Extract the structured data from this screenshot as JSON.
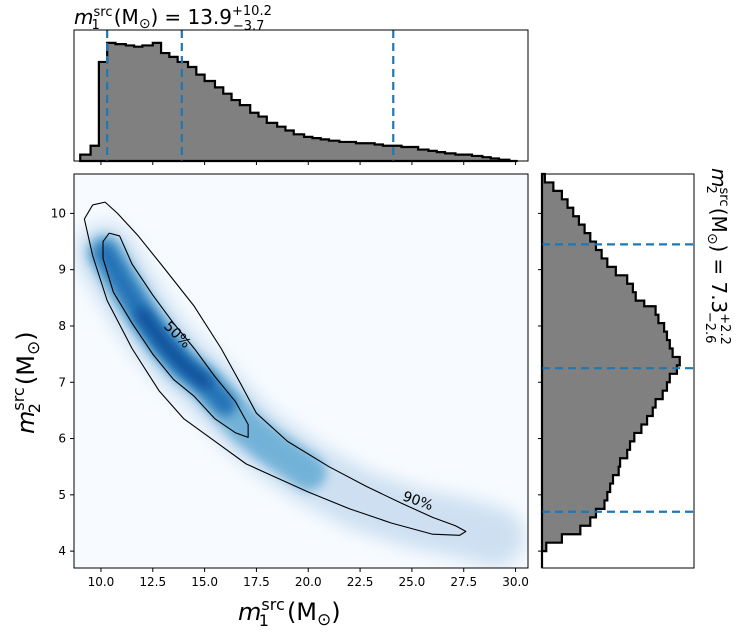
{
  "chart_data": [
    {
      "type": "histogram",
      "panel": "m1 marginal",
      "title": {
        "var": "m",
        "sup": "src",
        "sub": "1",
        "unit": "(M",
        "sun": "⊙",
        "close": ")",
        "value": "= 13.9",
        "plus": "+10.2",
        "minus": "−3.7"
      },
      "bin_edges": [
        9.0,
        9.5,
        9.9,
        10.3,
        10.7,
        11.2,
        11.6,
        12.0,
        12.5,
        12.9,
        13.3,
        13.7,
        14.2,
        14.6,
        15.0,
        15.5,
        15.9,
        16.3,
        16.7,
        17.2,
        17.6,
        18.0,
        18.5,
        18.9,
        19.3,
        19.8,
        20.2,
        20.6,
        21.0,
        21.5,
        21.9,
        22.3,
        22.8,
        23.2,
        23.6,
        24.1,
        24.5,
        24.9,
        25.3,
        25.8,
        26.2,
        26.6,
        27.1,
        27.5,
        27.9,
        28.4,
        28.8,
        29.2,
        29.7,
        30.1
      ],
      "counts": [
        0.05,
        0.12,
        0.78,
        0.93,
        0.92,
        0.91,
        0.9,
        0.91,
        0.93,
        0.85,
        0.82,
        0.78,
        0.74,
        0.68,
        0.63,
        0.58,
        0.53,
        0.48,
        0.44,
        0.38,
        0.35,
        0.3,
        0.27,
        0.24,
        0.21,
        0.19,
        0.18,
        0.17,
        0.16,
        0.15,
        0.15,
        0.14,
        0.14,
        0.13,
        0.12,
        0.12,
        0.11,
        0.11,
        0.09,
        0.08,
        0.07,
        0.06,
        0.05,
        0.05,
        0.04,
        0.03,
        0.02,
        0.01,
        0.0
      ],
      "quantile_lines": [
        10.3,
        13.9,
        24.1
      ],
      "xlim": [
        8.7,
        30.6
      ],
      "ylim": [
        0,
        1.0
      ]
    },
    {
      "type": "heatmap",
      "panel": "joint density",
      "xlabel": {
        "var": "m",
        "sup": "src",
        "sub": "1",
        "unit": "(M",
        "sun": "⊙",
        "close": ")"
      },
      "ylabel": {
        "var": "m",
        "sup": "src",
        "sub": "2",
        "unit": "(M",
        "sun": "⊙",
        "close": ")"
      },
      "xlim": [
        8.7,
        30.6
      ],
      "ylim": [
        3.7,
        10.7
      ],
      "x_ticks": [
        "10.0",
        "12.5",
        "15.0",
        "17.5",
        "20.0",
        "22.5",
        "25.0",
        "27.5",
        "30.0"
      ],
      "y_ticks": [
        "4",
        "5",
        "6",
        "7",
        "8",
        "9",
        "10"
      ],
      "density_ridge": [
        [
          10.2,
          9.3
        ],
        [
          11.0,
          8.8
        ],
        [
          12.0,
          8.2
        ],
        [
          13.0,
          7.7
        ],
        [
          14.0,
          7.3
        ],
        [
          15.0,
          7.0
        ],
        [
          16.0,
          6.6
        ],
        [
          17.0,
          6.2
        ],
        [
          18.0,
          5.9
        ],
        [
          20.0,
          5.4
        ],
        [
          22.5,
          4.9
        ],
        [
          25.0,
          4.6
        ],
        [
          27.5,
          4.4
        ],
        [
          29.0,
          4.25
        ]
      ],
      "contours": [
        {
          "label": "50%",
          "label_at": [
            13.7,
            7.85
          ],
          "path": [
            [
              10.4,
              9.65
            ],
            [
              10.9,
              9.6
            ],
            [
              11.5,
              9.1
            ],
            [
              12.5,
              8.55
            ],
            [
              13.5,
              8.05
            ],
            [
              14.5,
              7.6
            ],
            [
              15.5,
              7.1
            ],
            [
              16.5,
              6.65
            ],
            [
              17.1,
              6.25
            ],
            [
              17.1,
              6.02
            ],
            [
              16.5,
              6.1
            ],
            [
              15.5,
              6.35
            ],
            [
              14.5,
              6.75
            ],
            [
              13.5,
              7.05
            ],
            [
              12.5,
              7.5
            ],
            [
              11.5,
              8.05
            ],
            [
              10.6,
              8.6
            ],
            [
              10.1,
              9.2
            ],
            [
              10.1,
              9.5
            ],
            [
              10.4,
              9.65
            ]
          ]
        },
        {
          "label": "90%",
          "label_at": [
            25.3,
            4.9
          ],
          "path": [
            [
              9.6,
              10.15
            ],
            [
              10.2,
              10.2
            ],
            [
              10.8,
              10.0
            ],
            [
              11.8,
              9.6
            ],
            [
              13.0,
              9.05
            ],
            [
              14.5,
              8.35
            ],
            [
              15.8,
              7.6
            ],
            [
              16.7,
              7.0
            ],
            [
              17.5,
              6.45
            ],
            [
              19.0,
              5.95
            ],
            [
              21.0,
              5.5
            ],
            [
              22.8,
              5.15
            ],
            [
              24.5,
              4.85
            ],
            [
              26.0,
              4.6
            ],
            [
              27.1,
              4.45
            ],
            [
              27.6,
              4.35
            ],
            [
              27.3,
              4.28
            ],
            [
              26.0,
              4.3
            ],
            [
              24.0,
              4.5
            ],
            [
              22.0,
              4.75
            ],
            [
              20.0,
              5.05
            ],
            [
              18.5,
              5.3
            ],
            [
              17.0,
              5.55
            ],
            [
              15.5,
              5.95
            ],
            [
              14.0,
              6.35
            ],
            [
              12.8,
              6.85
            ],
            [
              11.5,
              7.6
            ],
            [
              10.3,
              8.45
            ],
            [
              9.6,
              9.25
            ],
            [
              9.2,
              9.9
            ],
            [
              9.6,
              10.15
            ]
          ]
        }
      ]
    },
    {
      "type": "histogram",
      "panel": "m2 marginal",
      "orientation": "horizontal",
      "label": {
        "var": "m",
        "sup": "src",
        "sub": "2",
        "unit": "(M",
        "sun": "⊙",
        "close": ")",
        "value": "= 7.3",
        "plus": "+2.2",
        "minus": "−2.6"
      },
      "bin_edges": [
        3.7,
        3.85,
        4.0,
        4.15,
        4.3,
        4.45,
        4.6,
        4.75,
        4.9,
        5.05,
        5.2,
        5.35,
        5.5,
        5.65,
        5.8,
        5.95,
        6.1,
        6.25,
        6.4,
        6.55,
        6.7,
        6.85,
        7.0,
        7.15,
        7.3,
        7.45,
        7.6,
        7.75,
        7.9,
        8.05,
        8.2,
        8.35,
        8.45,
        8.6,
        8.75,
        8.9,
        9.05,
        9.2,
        9.35,
        9.5,
        9.65,
        9.8,
        9.95,
        10.1,
        10.25,
        10.4,
        10.55,
        10.7
      ],
      "counts": [
        0.0,
        0.0,
        0.03,
        0.14,
        0.27,
        0.34,
        0.38,
        0.44,
        0.46,
        0.48,
        0.5,
        0.54,
        0.55,
        0.6,
        0.62,
        0.65,
        0.7,
        0.74,
        0.78,
        0.8,
        0.85,
        0.88,
        0.9,
        0.95,
        0.97,
        0.92,
        0.9,
        0.88,
        0.86,
        0.82,
        0.8,
        0.72,
        0.66,
        0.64,
        0.6,
        0.52,
        0.46,
        0.42,
        0.38,
        0.34,
        0.3,
        0.26,
        0.22,
        0.18,
        0.14,
        0.08,
        0.02
      ],
      "quantile_lines": [
        4.7,
        7.25,
        9.45
      ],
      "ylim": [
        3.7,
        10.7
      ],
      "xlim": [
        0,
        1.0
      ]
    }
  ],
  "colors": {
    "hist_fill": "#808080",
    "hist_edge": "#000000",
    "quantile_line": "#1f77b4",
    "contour": "#000000",
    "density_low": "#f7fbff",
    "density_high": "#08519c"
  }
}
